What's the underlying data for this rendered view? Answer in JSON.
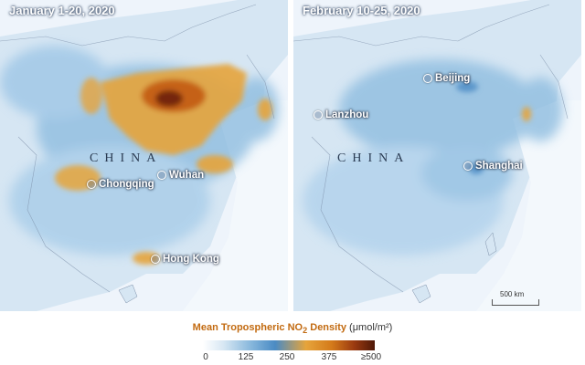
{
  "panels": {
    "left": {
      "title": "January 1-20, 2020",
      "country": "CHINA",
      "cities": [
        "Chongqing",
        "Wuhan",
        "Hong Kong"
      ]
    },
    "right": {
      "title": "February 10-25, 2020",
      "country": "CHINA",
      "cities": [
        "Beijing",
        "Lanzhou",
        "Shanghai"
      ],
      "scale_label": "500 km"
    }
  },
  "legend": {
    "title": "Mean Tropospheric NO",
    "subscript": "2",
    "title_suffix": " Density",
    "unit": "(μmol/m²)",
    "ticks": [
      "0",
      "125",
      "250",
      "375",
      "≥500"
    ]
  },
  "colors": {
    "low": "#cfe2f2",
    "mid": "#4a8bc4",
    "high": "#e6a43b",
    "peak": "#6b2208"
  }
}
